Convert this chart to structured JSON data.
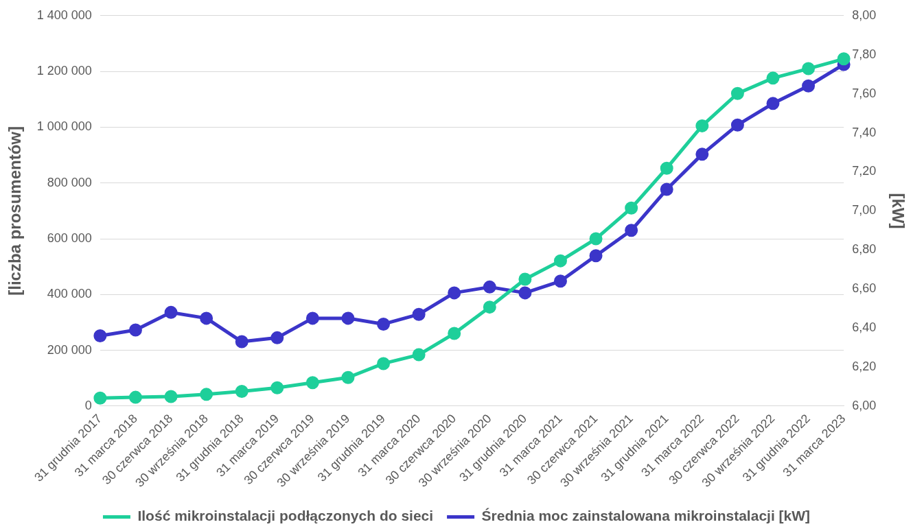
{
  "chart_data": {
    "type": "line",
    "ylabel": "[liczba prosumentów]",
    "y2label": "[kW]",
    "categories": [
      "31 grudnia 2017",
      "31 marca 2018",
      "30 czerwca 2018",
      "30 września 2018",
      "31 grudnia 2018",
      "31 marca 2019",
      "30 czerwca 2019",
      "30 września 2019",
      "31 grudnia 2019",
      "31 marca 2020",
      "30 czerwca 2020",
      "30 września 2020",
      "31 grudnia 2020",
      "31 marca 2021",
      "30 czerwca 2021",
      "30 września 2021",
      "31 grudnia 2021",
      "31 marca 2022",
      "30 czerwca 2022",
      "30 września 2022",
      "31 grudnia 2022",
      "31 marca 2023"
    ],
    "series": [
      {
        "name": "Ilość mikroinstalacji podłączonych do sieci",
        "color": "#1ecf9a",
        "values": [
          29000,
          31600,
          34200,
          42100,
          52600,
          65800,
          84200,
          102600,
          152600,
          184200,
          260500,
          355000,
          455000,
          521000,
          600000,
          710000,
          853000,
          1005000,
          1121000,
          1176000,
          1210000,
          1245000
        ]
      },
      {
        "name": "Średnia moc zainstalowana mikroinstalacji [kW]",
        "color": "#3b35c9",
        "axis": "y2",
        "values": [
          6.36,
          6.39,
          6.48,
          6.45,
          6.33,
          6.35,
          6.45,
          6.45,
          6.42,
          6.47,
          6.58,
          6.61,
          6.58,
          6.64,
          6.77,
          6.9,
          7.11,
          7.29,
          7.44,
          7.55,
          7.64,
          7.75
        ]
      }
    ],
    "ylim": [
      0,
      1400000
    ],
    "yticks": [
      {
        "value": 0,
        "label": "0"
      },
      {
        "value": 200000,
        "label": "200 000"
      },
      {
        "value": 400000,
        "label": "400 000"
      },
      {
        "value": 600000,
        "label": "600 000"
      },
      {
        "value": 800000,
        "label": "800 000"
      },
      {
        "value": 1000000,
        "label": "1 000 000"
      },
      {
        "value": 1200000,
        "label": "1 200 000"
      },
      {
        "value": 1400000,
        "label": "1 400 000"
      }
    ],
    "y2lim": [
      6,
      8
    ],
    "y2ticks": [
      {
        "value": 6,
        "label": "6,00"
      },
      {
        "value": 6.2,
        "label": "6,20"
      },
      {
        "value": 6.4,
        "label": "6,40"
      },
      {
        "value": 6.6,
        "label": "6,60"
      },
      {
        "value": 6.8,
        "label": "6,80"
      },
      {
        "value": 7,
        "label": "7,00"
      },
      {
        "value": 7.2,
        "label": "7,20"
      },
      {
        "value": 7.4,
        "label": "7,40"
      },
      {
        "value": 7.6,
        "label": "7,60"
      },
      {
        "value": 7.8,
        "label": "7,80"
      },
      {
        "value": 8,
        "label": "8,00"
      }
    ],
    "grid": "y",
    "legend": "bottom",
    "marker": "circle",
    "line_style": "solid"
  }
}
